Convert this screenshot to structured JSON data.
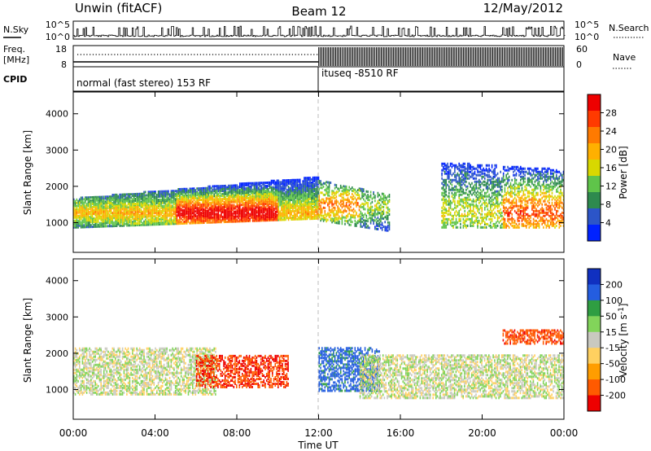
{
  "header": {
    "station": "Unwin (fitACF)",
    "beam": "Beam 12",
    "date": "12/May/2012"
  },
  "strips": {
    "nsky_label": "N.Sky",
    "nsearch_label": "N.Search",
    "count_ticks": [
      "10^5",
      "10^0"
    ],
    "freq_label_1": "Freq.",
    "freq_label_2": "[MHz]",
    "freq_ticks": [
      "18",
      "8"
    ],
    "nave_label": "Nave",
    "nave_ticks": [
      "60",
      "0"
    ],
    "cpid_label": "CPID",
    "cpid_1": "normal (fast stereo) 153 RF",
    "cpid_2": "ituseq -8510 RF"
  },
  "colors": {
    "power_scale": [
      "#0022ff",
      "#2c55c8",
      "#2e8a4e",
      "#5fc44a",
      "#d8d800",
      "#ffb000",
      "#ff7a00",
      "#ff3a00",
      "#ee0000"
    ],
    "velocity_scale": [
      "#ee0000",
      "#ff5a00",
      "#ff9d00",
      "#ffd060",
      "#c9c9c0",
      "#82d45a",
      "#2f9e42",
      "#245de0",
      "#1030c0"
    ]
  },
  "chart_data": [
    {
      "type": "heatmap",
      "title": "Power",
      "xlabel": "Time UT",
      "ylabel": "Slant Range [km]",
      "x_ticks": [
        "00:00",
        "04:00",
        "08:00",
        "12:00",
        "16:00",
        "20:00",
        "00:00"
      ],
      "y_ticks": [
        1000,
        2000,
        3000,
        4000
      ],
      "xlim_hours": [
        0,
        24
      ],
      "ylim_km": [
        180,
        4600
      ],
      "colorbar": {
        "label": "Power [dB]",
        "ticks": [
          4,
          8,
          12,
          16,
          20,
          24,
          28
        ],
        "range": [
          0,
          30
        ]
      },
      "scatter_regions": [
        {
          "t0": 0.0,
          "t1": 12.0,
          "r_low_start": 900,
          "r_low_end": 1150,
          "r_high_start": 1700,
          "r_high_end": 2300,
          "density": 0.9,
          "center_t": 7.0,
          "center_r": 1300,
          "peak_db": 28,
          "peak_hours": [
            5,
            10
          ]
        },
        {
          "t0": 12.0,
          "t1": 15.5,
          "r_low_start": 1100,
          "r_low_end": 800,
          "r_high_start": 2200,
          "r_high_end": 1800,
          "density": 0.5,
          "center_t": 13.0,
          "center_r": 1500,
          "peak_db": 20,
          "peak_hours": [
            12,
            14
          ]
        },
        {
          "t0": 18.0,
          "t1": 24.0,
          "r_low_start": 900,
          "r_low_end": 900,
          "r_high_start": 2700,
          "r_high_end": 2500,
          "density": 0.5,
          "center_t": 22.0,
          "center_r": 1300,
          "peak_db": 22,
          "peak_hours": [
            21,
            24
          ]
        }
      ]
    },
    {
      "type": "heatmap",
      "title": "Velocity",
      "xlabel": "Time UT",
      "ylabel": "Slant Range [km]",
      "x_ticks": [
        "00:00",
        "04:00",
        "08:00",
        "12:00",
        "16:00",
        "20:00",
        "00:00"
      ],
      "y_ticks": [
        1000,
        2000,
        3000,
        4000
      ],
      "xlim_hours": [
        0,
        24
      ],
      "ylim_km": [
        180,
        4600
      ],
      "colorbar": {
        "label": "Velocity [m s^-1]",
        "ticks": [
          200,
          100,
          50,
          15,
          -15,
          -50,
          -100,
          -200
        ],
        "range": [
          -250,
          250
        ]
      },
      "scatter_regions": [
        {
          "t0": 0.0,
          "t1": 7.0,
          "r_low": 900,
          "r_high": 2200,
          "velocity": 0
        },
        {
          "t0": 6.0,
          "t1": 10.5,
          "r_low": 1100,
          "r_high": 2000,
          "velocity": -200
        },
        {
          "t0": 12.0,
          "t1": 15.0,
          "r_low": 1000,
          "r_high": 2200,
          "velocity": 120
        },
        {
          "t0": 14.0,
          "t1": 24.0,
          "r_low": 800,
          "r_high": 2000,
          "velocity": 0
        },
        {
          "t0": 21.0,
          "t1": 24.0,
          "r_low": 2300,
          "r_high": 2700,
          "velocity": -180
        }
      ]
    }
  ]
}
